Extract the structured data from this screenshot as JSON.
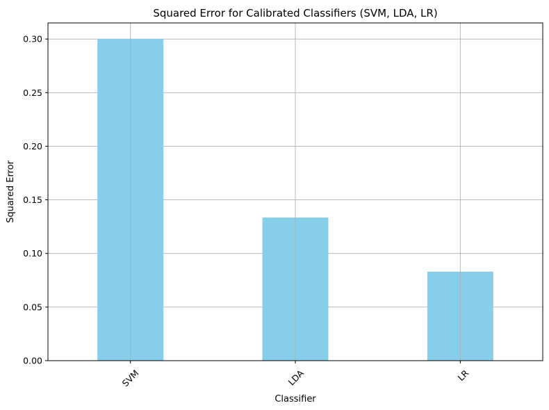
{
  "chart_data": {
    "type": "bar",
    "title": "Squared Error for Calibrated Classifiers (SVM, LDA, LR)",
    "xlabel": "Classifier",
    "ylabel": "Squared Error",
    "categories": [
      "SVM",
      "LDA",
      "LR"
    ],
    "values": [
      0.3,
      0.1335,
      0.083
    ],
    "ylim": [
      0,
      0.315
    ],
    "yticks": [
      0.0,
      0.05,
      0.1,
      0.15,
      0.2,
      0.25,
      0.3
    ],
    "ytick_labels": [
      "0.00",
      "0.05",
      "0.10",
      "0.15",
      "0.20",
      "0.25",
      "0.30"
    ],
    "grid": true,
    "bar_color": "#87ceeb",
    "grid_color": "#b0b0b0",
    "xtick_rotation": 45
  }
}
